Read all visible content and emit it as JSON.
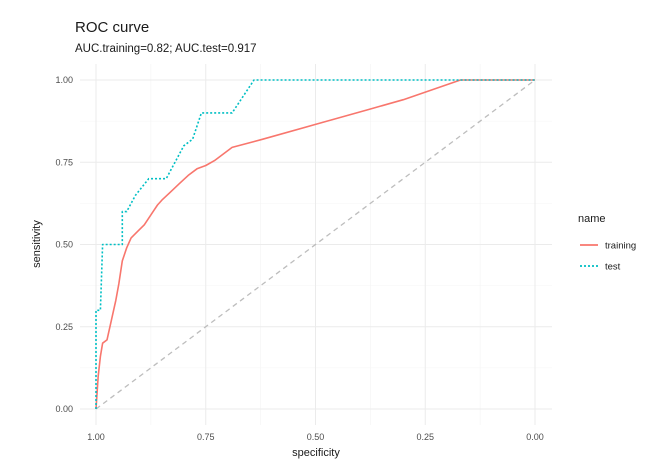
{
  "chart_data": {
    "type": "line",
    "title": "ROC curve",
    "subtitle": "AUC.training=0.82; AUC.test=0.917",
    "xlabel": "specificity",
    "ylabel": "sensitivity",
    "xlim": [
      1.0,
      0.0
    ],
    "ylim": [
      0.0,
      1.0
    ],
    "x_reversed": true,
    "x_ticks": [
      1.0,
      0.75,
      0.5,
      0.25,
      0.0
    ],
    "x_tick_labels": [
      "1.00",
      "0.75",
      "0.50",
      "0.25",
      "0.00"
    ],
    "y_ticks": [
      0.0,
      0.25,
      0.5,
      0.75,
      1.0
    ],
    "y_tick_labels": [
      "0.00",
      "0.25",
      "0.50",
      "0.75",
      "1.00"
    ],
    "grid": true,
    "legend": {
      "title": "name",
      "placement": "right"
    },
    "diagonal_reference": {
      "from": [
        1.0,
        0.0
      ],
      "to": [
        0.0,
        1.0
      ],
      "color": "#bdbdbd",
      "style": "dashed"
    },
    "series": [
      {
        "name": "training",
        "color": "#F8766D",
        "style": "solid",
        "points": [
          [
            1.0,
            0.0
          ],
          [
            0.995,
            0.1
          ],
          [
            0.99,
            0.16
          ],
          [
            0.985,
            0.2
          ],
          [
            0.975,
            0.21
          ],
          [
            0.965,
            0.27
          ],
          [
            0.955,
            0.33
          ],
          [
            0.948,
            0.38
          ],
          [
            0.94,
            0.45
          ],
          [
            0.93,
            0.49
          ],
          [
            0.92,
            0.52
          ],
          [
            0.905,
            0.54
          ],
          [
            0.89,
            0.56
          ],
          [
            0.88,
            0.58
          ],
          [
            0.87,
            0.6
          ],
          [
            0.86,
            0.62
          ],
          [
            0.85,
            0.635
          ],
          [
            0.83,
            0.66
          ],
          [
            0.81,
            0.685
          ],
          [
            0.79,
            0.71
          ],
          [
            0.77,
            0.73
          ],
          [
            0.75,
            0.74
          ],
          [
            0.73,
            0.755
          ],
          [
            0.71,
            0.775
          ],
          [
            0.69,
            0.795
          ],
          [
            0.62,
            0.82
          ],
          [
            0.5,
            0.865
          ],
          [
            0.38,
            0.91
          ],
          [
            0.3,
            0.94
          ],
          [
            0.17,
            1.0
          ],
          [
            0.0,
            1.0
          ]
        ]
      },
      {
        "name": "test",
        "color": "#00BFC4",
        "style": "dotted",
        "points": [
          [
            1.0,
            0.0
          ],
          [
            1.0,
            0.3
          ],
          [
            0.99,
            0.3
          ],
          [
            0.985,
            0.5
          ],
          [
            0.94,
            0.5
          ],
          [
            0.94,
            0.6
          ],
          [
            0.93,
            0.6
          ],
          [
            0.91,
            0.65
          ],
          [
            0.88,
            0.7
          ],
          [
            0.84,
            0.7
          ],
          [
            0.8,
            0.8
          ],
          [
            0.78,
            0.82
          ],
          [
            0.76,
            0.9
          ],
          [
            0.69,
            0.9
          ],
          [
            0.64,
            1.0
          ],
          [
            0.0,
            1.0
          ]
        ]
      }
    ]
  }
}
